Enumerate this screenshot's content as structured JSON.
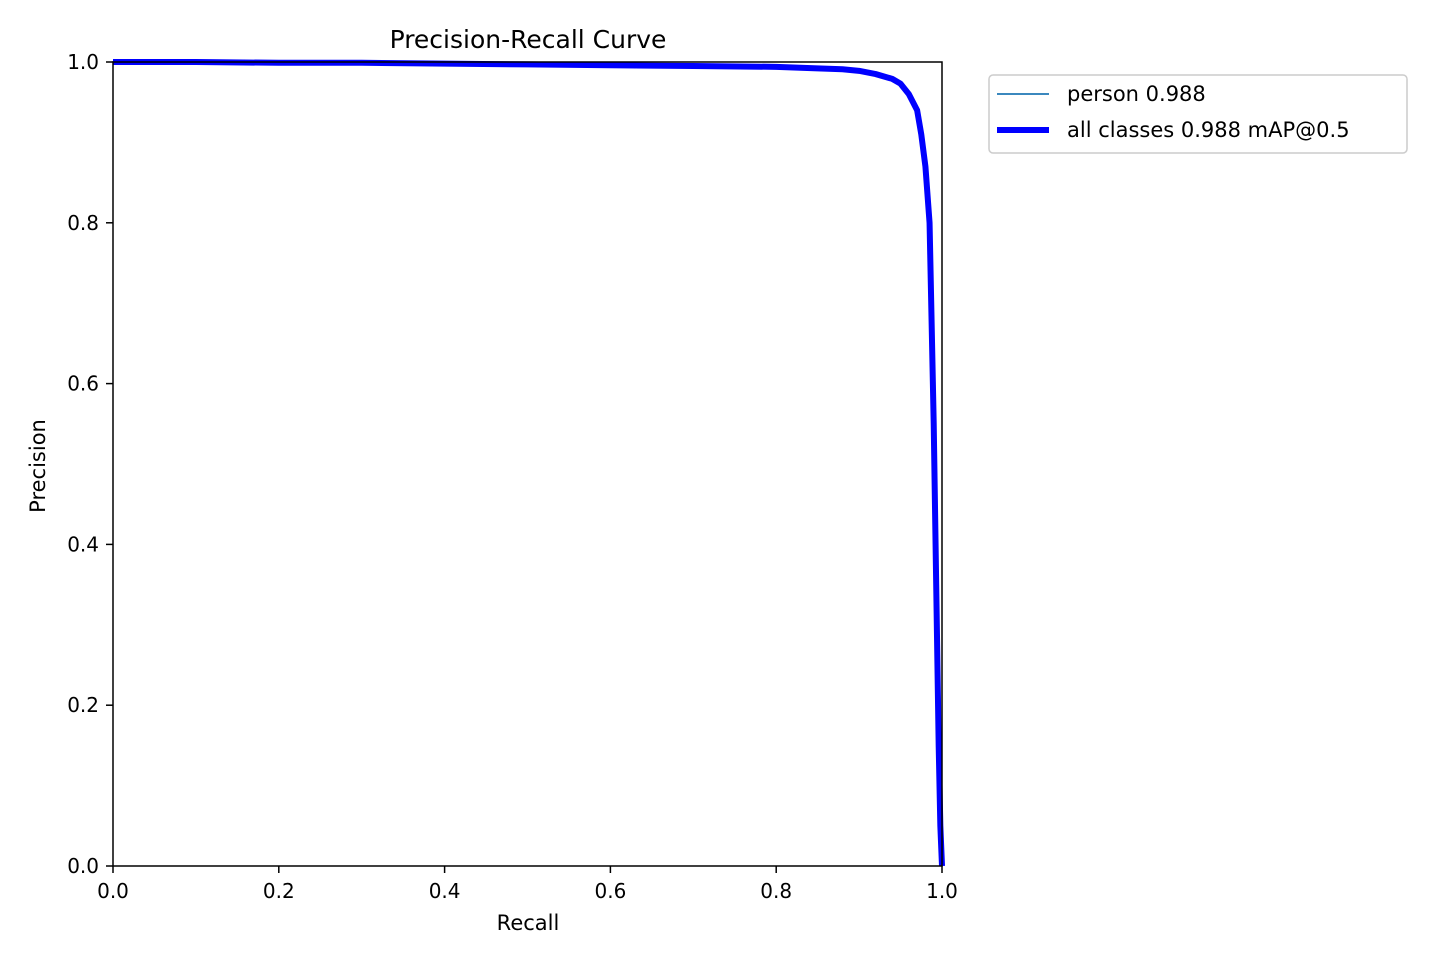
{
  "chart_data": {
    "type": "line",
    "title": "Precision-Recall Curve",
    "xlabel": "Recall",
    "ylabel": "Precision",
    "xlim": [
      0.0,
      1.0
    ],
    "ylim": [
      0.0,
      1.0
    ],
    "xticks": [
      "0.0",
      "0.2",
      "0.4",
      "0.6",
      "0.8",
      "1.0"
    ],
    "yticks": [
      "0.0",
      "0.2",
      "0.4",
      "0.6",
      "0.8",
      "1.0"
    ],
    "grid": false,
    "legend_position": "outside-top-right",
    "series": [
      {
        "name": "person 0.988",
        "color": "#1f77b4",
        "x": [
          0.0,
          0.1,
          0.2,
          0.3,
          0.4,
          0.5,
          0.6,
          0.7,
          0.8,
          0.85,
          0.88,
          0.9,
          0.92,
          0.94,
          0.95,
          0.96,
          0.97,
          0.975,
          0.98,
          0.985,
          0.99,
          0.993,
          0.996,
          0.998,
          1.0
        ],
        "y": [
          1.0,
          1.0,
          0.999,
          0.999,
          0.998,
          0.997,
          0.996,
          0.995,
          0.994,
          0.992,
          0.991,
          0.989,
          0.985,
          0.979,
          0.973,
          0.96,
          0.94,
          0.91,
          0.87,
          0.8,
          0.55,
          0.35,
          0.15,
          0.05,
          0.0
        ]
      },
      {
        "name": "all classes 0.988 mAP@0.5",
        "color": "#0000ff",
        "x": [
          0.0,
          0.1,
          0.2,
          0.3,
          0.4,
          0.5,
          0.6,
          0.7,
          0.8,
          0.85,
          0.88,
          0.9,
          0.92,
          0.94,
          0.95,
          0.96,
          0.97,
          0.975,
          0.98,
          0.985,
          0.99,
          0.993,
          0.996,
          0.998,
          1.0
        ],
        "y": [
          1.0,
          1.0,
          0.999,
          0.999,
          0.998,
          0.997,
          0.996,
          0.995,
          0.994,
          0.992,
          0.991,
          0.989,
          0.985,
          0.979,
          0.973,
          0.96,
          0.94,
          0.91,
          0.87,
          0.8,
          0.55,
          0.35,
          0.15,
          0.05,
          0.0
        ]
      }
    ]
  }
}
